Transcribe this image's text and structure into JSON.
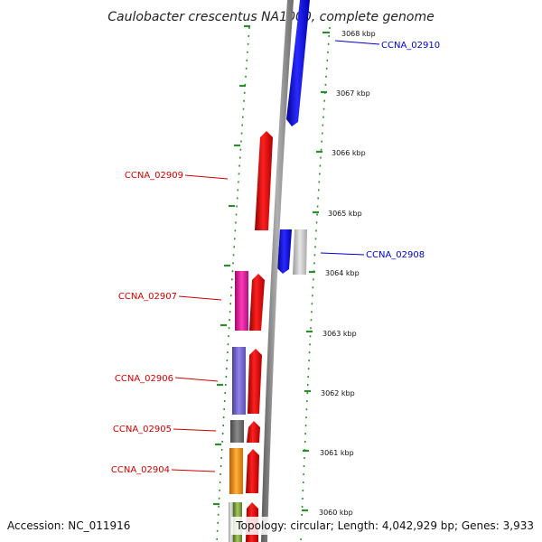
{
  "title": "Caulobacter crescentus NA1000, complete genome",
  "accession_text": "Accession: NC_011916",
  "summary_text": "Topology: circular; Length: 4,042,929 bp; Genes: 3,933",
  "scale_ticks": [
    {
      "label": "3068 kbp",
      "kbp": 3068
    },
    {
      "label": "3067 kbp",
      "kbp": 3067
    },
    {
      "label": "3066 kbp",
      "kbp": 3066
    },
    {
      "label": "3065 kbp",
      "kbp": 3065
    },
    {
      "label": "3064 kbp",
      "kbp": 3064
    },
    {
      "label": "3063 kbp",
      "kbp": 3063
    },
    {
      "label": "3062 kbp",
      "kbp": 3062
    },
    {
      "label": "3061 kbp",
      "kbp": 3061
    },
    {
      "label": "3060 kbp",
      "kbp": 3060
    }
  ],
  "gene_labels": [
    {
      "name": "CCNA_02910",
      "color": "#0000cc"
    },
    {
      "name": "CCNA_02909",
      "color": "#cc0000"
    },
    {
      "name": "CCNA_02908",
      "color": "#0000cc"
    },
    {
      "name": "CCNA_02907",
      "color": "#cc0000"
    },
    {
      "name": "CCNA_02906",
      "color": "#cc0000"
    },
    {
      "name": "CCNA_02905",
      "color": "#cc0000"
    },
    {
      "name": "CCNA_02904",
      "color": "#cc0000"
    }
  ],
  "colors": {
    "backbone": "#8a8a8a",
    "forward_feature": "#ee0000",
    "reverse_feature": "#0000ee",
    "tick_marks": "#2e8b2e",
    "grey_feature": "#c8c8c8",
    "magenta_feature": "#e0179a",
    "slate_feature": "#6f63c9",
    "dark_grey_feature": "#6a6a6a",
    "orange_feature": "#f58c0a",
    "olive_feature": "#7a9a3a"
  }
}
